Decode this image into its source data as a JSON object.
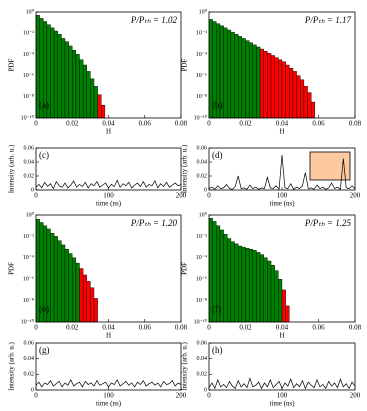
{
  "chart_data": [
    {
      "type": "histogram",
      "label": "(a)",
      "annotation": "P/Pₜₕ = 1.02",
      "xlabel": "H",
      "ylabel": "PDF",
      "bins": [
        0,
        0.002,
        0.004,
        0.006,
        0.008,
        0.01,
        0.012,
        0.014,
        0.016,
        0.018,
        0.02,
        0.022,
        0.024,
        0.026,
        0.028,
        0.03,
        0.032,
        0.034,
        0.036,
        0.038
      ],
      "series": [
        {
          "color": "#008000",
          "values": [
            0.5,
            0.25,
            0.126,
            0.063,
            0.032,
            0.016,
            0.0079,
            0.0032,
            0.0016,
            0.00063,
            0.00025,
            0.0001,
            3.2e-05,
            1e-05,
            2.5e-06,
            5e-07,
            1e-07,
            null,
            null
          ]
        },
        {
          "color": "#ff0000",
          "values": [
            null,
            null,
            null,
            null,
            null,
            null,
            null,
            null,
            null,
            null,
            null,
            null,
            null,
            null,
            null,
            null,
            null,
            1.6e-08,
            1.6e-09
          ]
        }
      ],
      "xlim": [
        0,
        0.08
      ],
      "xticks": [
        0,
        0.02,
        0.04,
        0.06,
        0.08
      ],
      "ylim": [
        1e-10,
        1
      ],
      "yscale": "log",
      "yticks": [
        {
          "value": 1,
          "label": "10⁰"
        },
        {
          "value": 0.01,
          "label": "10⁻²"
        },
        {
          "value": 0.0001,
          "label": "10⁻⁴"
        },
        {
          "value": 1e-06,
          "label": "10⁻⁶"
        },
        {
          "value": 1e-08,
          "label": "10⁻⁸"
        },
        {
          "value": 1e-10,
          "label": "10⁻¹⁰"
        }
      ]
    },
    {
      "type": "histogram",
      "label": "(b)",
      "annotation": "P/Pₜₕ = 1.17",
      "xlabel": "H",
      "ylabel": "PDF",
      "bins": [
        0,
        0.002,
        0.004,
        0.006,
        0.008,
        0.01,
        0.012,
        0.014,
        0.016,
        0.018,
        0.02,
        0.022,
        0.024,
        0.026,
        0.028,
        0.03,
        0.032,
        0.034,
        0.036,
        0.038,
        0.04,
        0.042,
        0.044,
        0.046,
        0.048,
        0.05,
        0.052,
        0.054,
        0.056,
        0.058
      ],
      "series": [
        {
          "color": "#008000",
          "values": [
            0.2,
            0.126,
            0.079,
            0.05,
            0.032,
            0.02,
            0.0126,
            0.0079,
            0.005,
            0.0032,
            0.002,
            0.00126,
            0.00079,
            0.0005,
            null,
            null,
            null,
            null,
            null,
            null,
            null,
            null,
            null,
            null,
            null,
            null,
            null,
            null,
            null
          ]
        },
        {
          "color": "#ff0000",
          "values": [
            null,
            null,
            null,
            null,
            null,
            null,
            null,
            null,
            null,
            null,
            null,
            null,
            null,
            null,
            0.00032,
            0.0002,
            0.000126,
            7.9e-05,
            5e-05,
            3.2e-05,
            2e-05,
            1e-05,
            5e-06,
            2.5e-06,
            1e-06,
            4e-07,
            1e-07,
            2.5e-08,
            3.2e-09
          ]
        }
      ],
      "xlim": [
        0,
        0.08
      ],
      "xticks": [
        0,
        0.02,
        0.04,
        0.06,
        0.08
      ],
      "ylim": [
        1e-10,
        1
      ],
      "yscale": "log",
      "yticks": [
        {
          "value": 1,
          "label": "10⁰"
        },
        {
          "value": 0.01,
          "label": "10⁻²"
        },
        {
          "value": 0.0001,
          "label": "10⁻⁴"
        },
        {
          "value": 1e-06,
          "label": "10⁻⁶"
        },
        {
          "value": 1e-08,
          "label": "10⁻⁸"
        },
        {
          "value": 1e-10,
          "label": "10⁻¹⁰"
        }
      ]
    },
    {
      "type": "line",
      "label": "(c)",
      "xlabel": "time (ns)",
      "ylabel": "Intensity (arb. u.)",
      "x": [
        0,
        4,
        8,
        12,
        16,
        20,
        24,
        28,
        32,
        36,
        40,
        44,
        48,
        52,
        56,
        60,
        64,
        68,
        72,
        76,
        80,
        84,
        88,
        92,
        96,
        100,
        104,
        108,
        112,
        116,
        120,
        124,
        128,
        132,
        136,
        140,
        144,
        148,
        152,
        156,
        160,
        164,
        168,
        172,
        176,
        180,
        184,
        188,
        192,
        196,
        200
      ],
      "series": [
        {
          "color": "#000000",
          "values": [
            0.004,
            0.008,
            0.003,
            0.011,
            0.005,
            0.009,
            0.002,
            0.012,
            0.006,
            0.004,
            0.01,
            0.003,
            0.007,
            0.013,
            0.004,
            0.008,
            0.005,
            0.011,
            0.003,
            0.009,
            0.006,
            0.012,
            0.004,
            0.007,
            0.01,
            0.003,
            0.008,
            0.005,
            0.014,
            0.004,
            0.009,
            0.006,
            0.011,
            0.003,
            0.007,
            0.01,
            0.005,
            0.012,
            0.004,
            0.008,
            0.006,
            0.013,
            0.003,
            0.009,
            0.005,
            0.011,
            0.004,
            0.007,
            0.01,
            0.006,
            0.008
          ]
        }
      ],
      "xlim": [
        0,
        200
      ],
      "xticks": [
        0,
        100,
        200
      ],
      "ylim": [
        0,
        0.06
      ],
      "yticks": [
        0,
        0.02,
        0.04,
        0.06
      ]
    },
    {
      "type": "line",
      "label": "(d)",
      "xlabel": "time (ns)",
      "ylabel": "Intensity (arb. u.)",
      "x": [
        0,
        4,
        8,
        12,
        16,
        20,
        24,
        28,
        32,
        36,
        40,
        44,
        48,
        52,
        56,
        60,
        64,
        68,
        72,
        76,
        80,
        84,
        88,
        92,
        96,
        100,
        104,
        108,
        112,
        116,
        120,
        124,
        128,
        132,
        136,
        140,
        144,
        148,
        152,
        156,
        160,
        164,
        168,
        172,
        176,
        180,
        184,
        188,
        192,
        196,
        200
      ],
      "series": [
        {
          "color": "#000000",
          "values": [
            0.002,
            0.004,
            0.001,
            0.006,
            0.002,
            0.003,
            0.008,
            0.002,
            0.001,
            0.005,
            0.02,
            0.002,
            0.003,
            0.001,
            0.007,
            0.002,
            0.004,
            0.001,
            0.003,
            0.002,
            0.018,
            0.003,
            0.002,
            0.006,
            0.001,
            0.05,
            0.003,
            0.002,
            0.009,
            0.001,
            0.004,
            0.002,
            0.006,
            0.025,
            0.002,
            0.003,
            0.001,
            0.007,
            0.002,
            0.004,
            0.001,
            0.003,
            0.01,
            0.002,
            0.004,
            0.001,
            0.045,
            0.003,
            0.002,
            0.006,
            0.002
          ]
        }
      ],
      "xlim": [
        0,
        200
      ],
      "xticks": [
        0,
        100,
        200
      ],
      "ylim": [
        0,
        0.06
      ],
      "yticks": [
        0,
        0.02,
        0.04,
        0.06
      ]
    },
    {
      "type": "histogram",
      "label": "(e)",
      "annotation": "P/Pₜₕ = 1.20",
      "xlabel": "H",
      "ylabel": "PDF",
      "bins": [
        0,
        0.002,
        0.004,
        0.006,
        0.008,
        0.01,
        0.012,
        0.014,
        0.016,
        0.018,
        0.02,
        0.022,
        0.024,
        0.026,
        0.028,
        0.03,
        0.032,
        0.034
      ],
      "series": [
        {
          "color": "#008000",
          "values": [
            0.4,
            0.2,
            0.1,
            0.05,
            0.02,
            0.01,
            0.004,
            0.0016,
            0.00063,
            0.00025,
            0.0001,
            3.2e-05,
            null,
            null,
            null,
            null,
            null
          ]
        },
        {
          "color": "#ff0000",
          "values": [
            null,
            null,
            null,
            null,
            null,
            null,
            null,
            null,
            null,
            null,
            null,
            null,
            1e-05,
            2.5e-06,
            6.3e-07,
            1.6e-07,
            1.6e-08
          ]
        }
      ],
      "xlim": [
        0,
        0.08
      ],
      "xticks": [
        0,
        0.02,
        0.04,
        0.06,
        0.08
      ],
      "ylim": [
        1e-10,
        1
      ],
      "yscale": "log",
      "yticks": [
        {
          "value": 1,
          "label": "10⁰"
        },
        {
          "value": 0.01,
          "label": "10⁻²"
        },
        {
          "value": 0.0001,
          "label": "10⁻⁴"
        },
        {
          "value": 1e-06,
          "label": "10⁻⁶"
        },
        {
          "value": 1e-08,
          "label": "10⁻⁸"
        },
        {
          "value": 1e-10,
          "label": "10⁻¹⁰"
        }
      ]
    },
    {
      "type": "histogram",
      "label": "(f)",
      "annotation": "P/Pₜₕ = 1.25",
      "xlabel": "H",
      "ylabel": "PDF",
      "bins": [
        0,
        0.002,
        0.004,
        0.006,
        0.008,
        0.01,
        0.012,
        0.014,
        0.016,
        0.018,
        0.02,
        0.022,
        0.024,
        0.026,
        0.028,
        0.03,
        0.032,
        0.034,
        0.036,
        0.038,
        0.04,
        0.042,
        0.044
      ],
      "series": [
        {
          "color": "#008000",
          "values": [
            0.5,
            0.25,
            0.1,
            0.04,
            0.016,
            0.0063,
            0.0032,
            0.002,
            0.00126,
            0.001,
            0.00079,
            0.00063,
            0.0005,
            0.00032,
            0.0002,
            0.0001,
            5e-05,
            2e-05,
            6.3e-06,
            1e-06,
            null,
            null
          ]
        },
        {
          "color": "#ff0000",
          "values": [
            null,
            null,
            null,
            null,
            null,
            null,
            null,
            null,
            null,
            null,
            null,
            null,
            null,
            null,
            null,
            null,
            null,
            null,
            null,
            null,
            1e-07,
            3.2e-09
          ]
        }
      ],
      "xlim": [
        0,
        0.08
      ],
      "xticks": [
        0,
        0.02,
        0.04,
        0.06,
        0.08
      ],
      "ylim": [
        1e-10,
        1
      ],
      "yscale": "log",
      "yticks": [
        {
          "value": 1,
          "label": "10⁰"
        },
        {
          "value": 0.01,
          "label": "10⁻²"
        },
        {
          "value": 0.0001,
          "label": "10⁻⁴"
        },
        {
          "value": 1e-06,
          "label": "10⁻⁶"
        },
        {
          "value": 1e-08,
          "label": "10⁻⁸"
        },
        {
          "value": 1e-10,
          "label": "10⁻¹⁰"
        }
      ]
    },
    {
      "type": "line",
      "label": "(g)",
      "xlabel": "time (ns)",
      "ylabel": "Intensity (arb. u.)",
      "x": [
        0,
        4,
        8,
        12,
        16,
        20,
        24,
        28,
        32,
        36,
        40,
        44,
        48,
        52,
        56,
        60,
        64,
        68,
        72,
        76,
        80,
        84,
        88,
        92,
        96,
        100,
        104,
        108,
        112,
        116,
        120,
        124,
        128,
        132,
        136,
        140,
        144,
        148,
        152,
        156,
        160,
        164,
        168,
        172,
        176,
        180,
        184,
        188,
        192,
        196,
        200
      ],
      "series": [
        {
          "color": "#000000",
          "values": [
            0.006,
            0.01,
            0.004,
            0.009,
            0.007,
            0.012,
            0.005,
            0.008,
            0.011,
            0.004,
            0.009,
            0.006,
            0.013,
            0.005,
            0.008,
            0.01,
            0.004,
            0.011,
            0.007,
            0.009,
            0.005,
            0.012,
            0.006,
            0.008,
            0.01,
            0.004,
            0.009,
            0.007,
            0.013,
            0.005,
            0.008,
            0.011,
            0.006,
            0.009,
            0.004,
            0.01,
            0.007,
            0.012,
            0.005,
            0.008,
            0.01,
            0.006,
            0.009,
            0.004,
            0.011,
            0.007,
            0.008,
            0.012,
            0.005,
            0.009,
            0.007
          ]
        }
      ],
      "xlim": [
        0,
        200
      ],
      "xticks": [
        0,
        100,
        200
      ],
      "ylim": [
        0,
        0.06
      ],
      "yticks": [
        0,
        0.02,
        0.04,
        0.06
      ]
    },
    {
      "type": "line",
      "label": "(h)",
      "xlabel": "time (ns)",
      "ylabel": "Intensity (arb. u.)",
      "x": [
        0,
        4,
        8,
        12,
        16,
        20,
        24,
        28,
        32,
        36,
        40,
        44,
        48,
        52,
        56,
        60,
        64,
        68,
        72,
        76,
        80,
        84,
        88,
        92,
        96,
        100,
        104,
        108,
        112,
        116,
        120,
        124,
        128,
        132,
        136,
        140,
        144,
        148,
        152,
        156,
        160,
        164,
        168,
        172,
        176,
        180,
        184,
        188,
        192,
        196,
        200
      ],
      "series": [
        {
          "color": "#000000",
          "values": [
            0.003,
            0.009,
            0.002,
            0.013,
            0.004,
            0.007,
            0.003,
            0.011,
            0.005,
            0.002,
            0.012,
            0.004,
            0.008,
            0.003,
            0.015,
            0.004,
            0.006,
            0.01,
            0.002,
            0.009,
            0.004,
            0.013,
            0.003,
            0.007,
            0.011,
            0.002,
            0.009,
            0.005,
            0.014,
            0.003,
            0.008,
            0.004,
            0.012,
            0.002,
            0.01,
            0.006,
            0.003,
            0.013,
            0.004,
            0.007,
            0.002,
            0.011,
            0.005,
            0.009,
            0.003,
            0.014,
            0.004,
            0.008,
            0.002,
            0.01,
            0.005
          ]
        }
      ],
      "xlim": [
        0,
        200
      ],
      "xticks": [
        0,
        100,
        200
      ],
      "ylim": [
        0,
        0.06
      ],
      "yticks": [
        0,
        0.02,
        0.04,
        0.06
      ]
    }
  ]
}
